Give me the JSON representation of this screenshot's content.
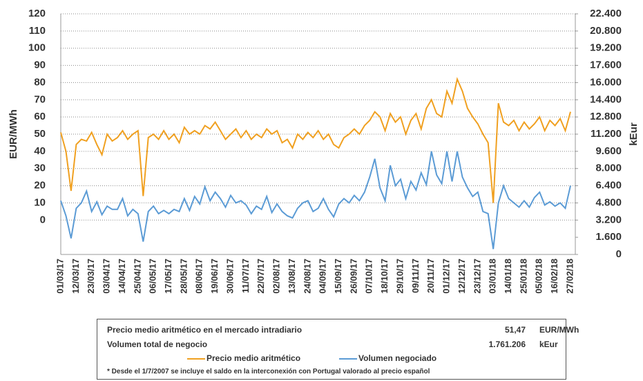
{
  "chart_data": {
    "type": "line",
    "ylabel": "EUR/MWh",
    "y2label": "kEur",
    "x": [
      "01/03/17",
      null,
      null,
      "12/03/17",
      null,
      null,
      "23/03/17",
      null,
      null,
      "03/04/17",
      null,
      null,
      "14/04/17",
      null,
      null,
      "25/04/17",
      null,
      null,
      "06/05/17",
      null,
      null,
      "17/05/17",
      null,
      null,
      "28/05/17",
      null,
      null,
      "08/06/17",
      null,
      null,
      "19/06/17",
      null,
      null,
      "30/06/17",
      null,
      null,
      "11/07/17",
      null,
      null,
      "22/07/17",
      null,
      null,
      "02/08/17",
      null,
      null,
      "13/08/17",
      null,
      null,
      "24/08/17",
      null,
      null,
      "04/09/17",
      null,
      null,
      "15/09/17",
      null,
      null,
      "26/09/17",
      null,
      null,
      "07/10/17",
      null,
      null,
      "18/10/17",
      null,
      null,
      "29/10/17",
      null,
      null,
      "09/11/17",
      null,
      null,
      "20/11/17",
      null,
      null,
      "01/12/17",
      null,
      null,
      "12/12/17",
      null,
      null,
      "23/12/17",
      null,
      null,
      "03/01/18",
      null,
      null,
      "14/01/18",
      null,
      null,
      "25/01/18",
      null,
      null,
      "05/02/18",
      null,
      null,
      "16/02/18",
      null,
      null,
      "27/02/18"
    ],
    "series": [
      {
        "name": "Precio medio aritmético",
        "color": "#f0a020",
        "values": [
          51,
          40,
          17,
          44,
          47,
          46,
          51,
          44,
          38,
          50,
          46,
          48,
          52,
          47,
          50,
          52,
          14,
          48,
          50,
          47,
          52,
          47,
          50,
          45,
          54,
          50,
          52,
          50,
          55,
          53,
          57,
          52,
          47,
          50,
          53,
          48,
          52,
          47,
          50,
          48,
          53,
          50,
          52,
          45,
          47,
          42,
          50,
          47,
          51,
          48,
          52,
          47,
          50,
          44,
          42,
          48,
          50,
          53,
          50,
          55,
          58,
          63,
          60,
          52,
          62,
          57,
          60,
          50,
          58,
          62,
          53,
          65,
          70,
          62,
          60,
          75,
          68,
          82,
          75,
          65,
          60,
          56,
          50,
          45,
          10,
          68,
          57,
          55,
          58,
          52,
          57,
          53,
          56,
          60,
          52,
          58,
          55,
          59,
          52,
          63
        ]
      },
      {
        "name": "Volumen negociado",
        "color": "#5b9bd5",
        "axis": "y2",
        "values": [
          5000,
          3600,
          1500,
          4300,
          4800,
          5900,
          4000,
          4900,
          3700,
          4500,
          4200,
          4200,
          5200,
          3600,
          4200,
          3800,
          1200,
          4000,
          4500,
          3800,
          4100,
          3800,
          4200,
          4000,
          5200,
          4100,
          5400,
          4700,
          6300,
          5000,
          5800,
          5200,
          4400,
          5500,
          4800,
          5000,
          4600,
          3800,
          4500,
          4200,
          5400,
          3900,
          4700,
          4000,
          3600,
          3400,
          4300,
          4800,
          5000,
          4000,
          4300,
          5200,
          4200,
          3500,
          4700,
          5200,
          4800,
          5500,
          5000,
          5800,
          7200,
          8900,
          6200,
          5000,
          8300,
          6400,
          7000,
          5200,
          6800,
          6000,
          7600,
          6500,
          9600,
          7400,
          6600,
          9600,
          6800,
          9600,
          7200,
          6200,
          5400,
          5800,
          4000,
          3800,
          500,
          4800,
          6400,
          5200,
          4800,
          4400,
          5000,
          4400,
          5300,
          5800,
          4600,
          4900,
          4500,
          4800,
          4300,
          6400
        ]
      }
    ],
    "ylim": [
      -20,
      120
    ],
    "yticks": [
      0,
      10,
      20,
      30,
      40,
      50,
      60,
      70,
      80,
      90,
      100,
      110,
      120
    ],
    "y2lim": [
      0,
      22400
    ],
    "y2ticks": [
      0,
      {
        "value": 1600,
        "label": "1.600"
      },
      {
        "value": 3200,
        "label": "3.200"
      },
      {
        "value": 4800,
        "label": "4.800"
      },
      {
        "value": 6400,
        "label": "6.400"
      },
      {
        "value": 8000,
        "label": "8.000"
      },
      {
        "value": 9600,
        "label": "9.600"
      },
      {
        "value": 11200,
        "label": "11.200"
      },
      {
        "value": 12800,
        "label": "12.800"
      },
      {
        "value": 14400,
        "label": "14.400"
      },
      {
        "value": 16000,
        "label": "16.000"
      },
      {
        "value": 17600,
        "label": "17.600"
      },
      {
        "value": 19200,
        "label": "19.200"
      },
      {
        "value": 20800,
        "label": "20.800"
      },
      {
        "value": 22400,
        "label": "22.400"
      }
    ],
    "grid": true
  },
  "info_table": {
    "rows": [
      {
        "label": "Precio medio aritmético en el mercado intradiario",
        "value": "51,47",
        "unit": "EUR/MWh"
      },
      {
        "label": "Volumen total de negocio",
        "value": "1.761.206",
        "unit": "kEur"
      }
    ],
    "footnote": "* Desde el 1/7/2007 se incluye el saldo en la interconexión con Portugal valorado al precio español"
  }
}
